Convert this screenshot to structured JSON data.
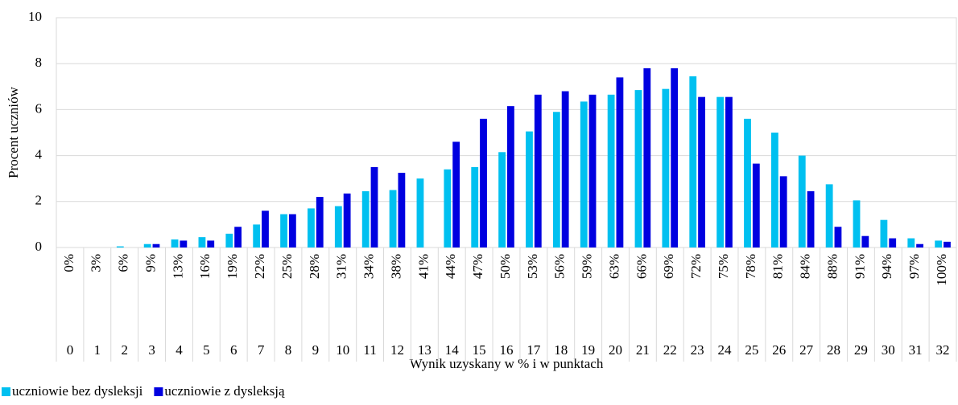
{
  "chart_data": {
    "type": "bar",
    "y_label": "Procent uczniów",
    "x_label": "Wynik uzyskany w % i w punktach",
    "percent_labels": [
      "0%",
      "3%",
      "6%",
      "9%",
      "13%",
      "16%",
      "19%",
      "22%",
      "25%",
      "28%",
      "31%",
      "34%",
      "38%",
      "41%",
      "44%",
      "47%",
      "50%",
      "53%",
      "56%",
      "59%",
      "63%",
      "66%",
      "69%",
      "72%",
      "75%",
      "78%",
      "81%",
      "84%",
      "88%",
      "91%",
      "94%",
      "97%",
      "100%"
    ],
    "categories": [
      "0",
      "1",
      "2",
      "3",
      "4",
      "5",
      "6",
      "7",
      "8",
      "9",
      "10",
      "11",
      "12",
      "13",
      "14",
      "15",
      "16",
      "17",
      "18",
      "19",
      "20",
      "21",
      "22",
      "23",
      "24",
      "25",
      "26",
      "27",
      "28",
      "29",
      "30",
      "31",
      "32"
    ],
    "series": [
      {
        "name": "uczniowie bez dysleksji",
        "color": "#00c0f0",
        "values": [
          0,
          0,
          0.05,
          0.15,
          0.35,
          0.45,
          0.6,
          1.0,
          1.45,
          1.7,
          1.8,
          2.45,
          2.5,
          3.0,
          3.4,
          3.5,
          4.15,
          5.05,
          5.9,
          6.35,
          6.65,
          6.85,
          6.9,
          7.45,
          6.55,
          5.6,
          5.0,
          4.0,
          2.75,
          2.05,
          1.2,
          0.4,
          0.3
        ]
      },
      {
        "name": "uczniowie z dysleksją",
        "color": "#0000e0",
        "values": [
          0,
          0,
          0,
          0.15,
          0.3,
          0.3,
          0.9,
          1.6,
          1.45,
          2.2,
          2.35,
          3.5,
          3.25,
          0,
          4.6,
          5.6,
          6.15,
          6.65,
          6.8,
          6.65,
          7.4,
          7.8,
          7.8,
          6.55,
          6.55,
          3.65,
          3.1,
          2.45,
          0.9,
          0.5,
          0.4,
          0.15,
          0.25
        ]
      }
    ],
    "ylim": [
      0,
      10
    ],
    "yticks": [
      0,
      2,
      4,
      6,
      8,
      10
    ],
    "grid": true,
    "legend": "bottom-left"
  }
}
